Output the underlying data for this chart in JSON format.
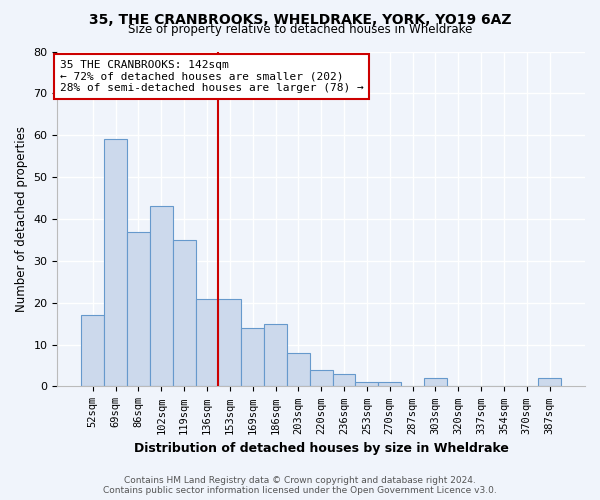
{
  "title": "35, THE CRANBROOKS, WHELDRAKE, YORK, YO19 6AZ",
  "subtitle": "Size of property relative to detached houses in Wheldrake",
  "xlabel": "Distribution of detached houses by size in Wheldrake",
  "ylabel": "Number of detached properties",
  "bar_labels": [
    "52sqm",
    "69sqm",
    "86sqm",
    "102sqm",
    "119sqm",
    "136sqm",
    "153sqm",
    "169sqm",
    "186sqm",
    "203sqm",
    "220sqm",
    "236sqm",
    "253sqm",
    "270sqm",
    "287sqm",
    "303sqm",
    "320sqm",
    "337sqm",
    "354sqm",
    "370sqm",
    "387sqm"
  ],
  "bar_values": [
    17,
    59,
    37,
    43,
    35,
    21,
    21,
    14,
    15,
    8,
    4,
    3,
    1,
    1,
    0,
    2,
    0,
    0,
    0,
    0,
    2
  ],
  "bar_color": "#ccd9ec",
  "bar_edge_color": "#6699cc",
  "reference_line_label": "35 THE CRANBROOKS: 142sqm",
  "annotation_line1": "← 72% of detached houses are smaller (202)",
  "annotation_line2": "28% of semi-detached houses are larger (78) →",
  "annotation_box_color": "#ffffff",
  "annotation_box_edge_color": "#cc0000",
  "vline_color": "#cc0000",
  "ylim": [
    0,
    80
  ],
  "yticks": [
    0,
    10,
    20,
    30,
    40,
    50,
    60,
    70,
    80
  ],
  "footer_line1": "Contains HM Land Registry data © Crown copyright and database right 2024.",
  "footer_line2": "Contains public sector information licensed under the Open Government Licence v3.0.",
  "bg_color": "#f0f4fb",
  "plot_bg_color": "#f0f4fb",
  "grid_color": "#ffffff",
  "vline_x_index": 6.0
}
